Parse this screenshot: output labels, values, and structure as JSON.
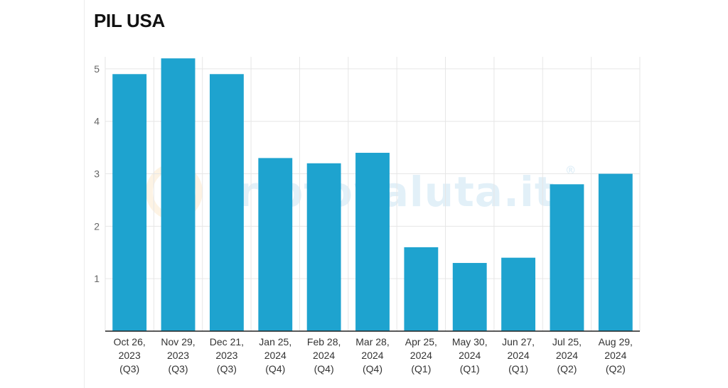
{
  "chart_data": {
    "type": "bar",
    "title": "PIL USA",
    "xlabel": "",
    "ylabel": "",
    "categories": [
      [
        "Oct 26,",
        "2023",
        "(Q3)"
      ],
      [
        "Nov 29,",
        "2023",
        "(Q3)"
      ],
      [
        "Dec 21,",
        "2023",
        "(Q3)"
      ],
      [
        "Jan 25,",
        "2024",
        "(Q4)"
      ],
      [
        "Feb 28,",
        "2024",
        "(Q4)"
      ],
      [
        "Mar 28,",
        "2024",
        "(Q4)"
      ],
      [
        "Apr 25,",
        "2024",
        "(Q1)"
      ],
      [
        "May 30,",
        "2024",
        "(Q1)"
      ],
      [
        "Jun 27,",
        "2024",
        "(Q1)"
      ],
      [
        "Jul 25,",
        "2024",
        "(Q2)"
      ],
      [
        "Aug 29,",
        "2024",
        "(Q2)"
      ]
    ],
    "values": [
      4.9,
      5.2,
      4.9,
      3.3,
      3.2,
      3.4,
      1.6,
      1.3,
      1.4,
      2.8,
      3.0
    ],
    "ylim": [
      0,
      5.5
    ],
    "yticks": [
      "1",
      "2",
      "3",
      "4",
      "5"
    ],
    "grid": true,
    "bar_color": "#1ea3cf",
    "grid_color": "#e6e6e6",
    "axis_color": "#222222"
  },
  "watermark": {
    "text": "criptovaluta.it",
    "mark": "®"
  }
}
